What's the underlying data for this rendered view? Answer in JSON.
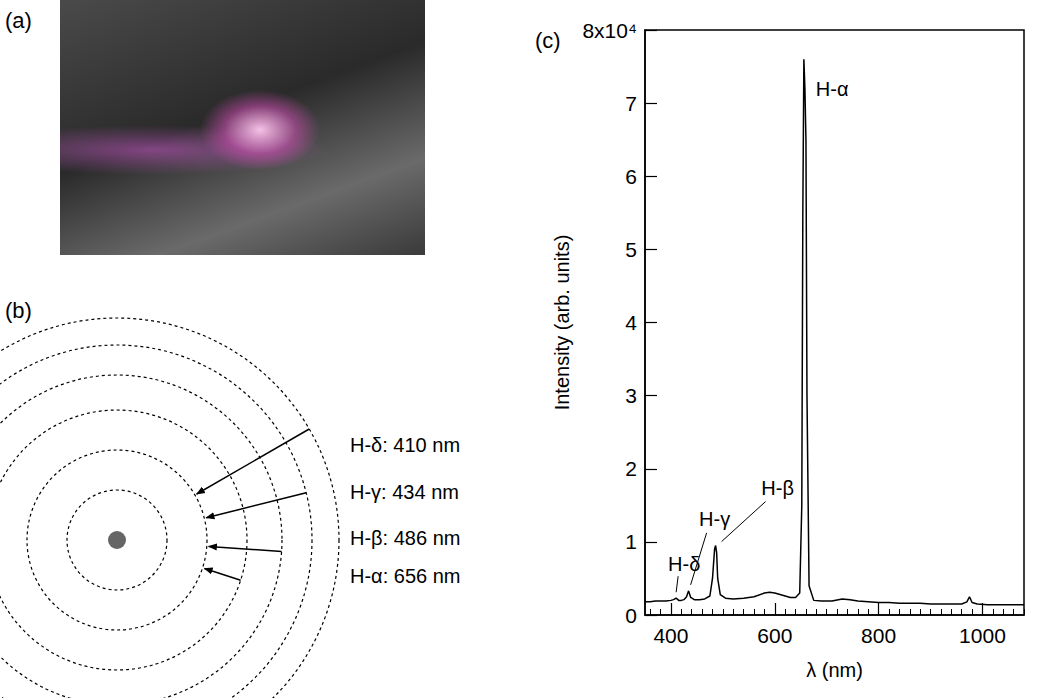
{
  "photo": {
    "panel": "(a)"
  },
  "diagram": {
    "panel": "(b)",
    "transitions": [
      "H-δ: 410 nm",
      "H-γ: 434 nm",
      "H-β: 486 nm",
      "H-α: 656 nm"
    ]
  },
  "chart_data": {
    "panel": "(c)",
    "type": "line",
    "color": "#000000",
    "x_label": "λ (nm)",
    "y_label": "Intensity (arb. units)",
    "x": [
      350,
      360,
      370,
      380,
      390,
      400,
      405,
      410,
      415,
      420,
      425,
      430,
      434,
      438,
      445,
      455,
      465,
      475,
      480,
      484,
      486,
      488,
      490,
      495,
      505,
      520,
      540,
      560,
      580,
      590,
      600,
      610,
      620,
      630,
      640,
      648,
      652,
      654,
      656,
      658,
      660,
      662,
      666,
      675,
      690,
      710,
      730,
      745,
      760,
      780,
      800,
      820,
      840,
      860,
      880,
      900,
      920,
      940,
      960,
      970,
      975,
      980,
      990,
      1010,
      1030,
      1050,
      1080
    ],
    "values": [
      0.18,
      0.18,
      0.19,
      0.19,
      0.19,
      0.2,
      0.21,
      0.23,
      0.2,
      0.2,
      0.21,
      0.25,
      0.33,
      0.24,
      0.21,
      0.21,
      0.22,
      0.26,
      0.5,
      0.9,
      0.95,
      0.85,
      0.5,
      0.28,
      0.23,
      0.22,
      0.23,
      0.25,
      0.3,
      0.31,
      0.3,
      0.28,
      0.26,
      0.24,
      0.24,
      0.3,
      1.5,
      5.5,
      7.6,
      7.2,
      6.5,
      3.0,
      0.4,
      0.2,
      0.19,
      0.19,
      0.22,
      0.21,
      0.19,
      0.18,
      0.17,
      0.17,
      0.16,
      0.16,
      0.16,
      0.15,
      0.15,
      0.15,
      0.15,
      0.18,
      0.25,
      0.17,
      0.15,
      0.14,
      0.14,
      0.14,
      0.14
    ],
    "xlim": [
      350,
      1080
    ],
    "ylim": [
      0,
      8
    ],
    "xticks": [
      400,
      600,
      800,
      1000
    ],
    "yticks": [
      0,
      1,
      2,
      3,
      4,
      5,
      6,
      7,
      {
        "value": 8,
        "label": "8x10⁴"
      }
    ],
    "annotations": [
      {
        "text": "H-δ",
        "x": 410
      },
      {
        "text": "H-γ",
        "x": 434
      },
      {
        "text": "H-β",
        "x": 486
      },
      {
        "text": "H-α",
        "x": 656
      }
    ],
    "grid": false
  }
}
